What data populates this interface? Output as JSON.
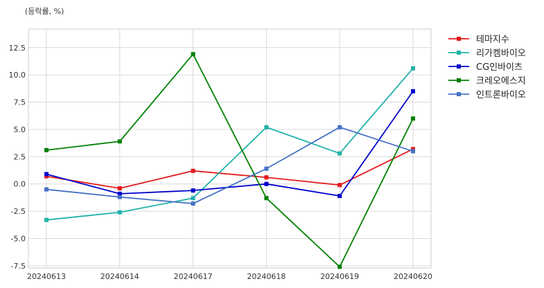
{
  "chart_data": {
    "type": "line",
    "title": "",
    "unit_label": "(등락률, %)",
    "xlabel": "",
    "ylabel": "",
    "categories": [
      "20240613",
      "20240614",
      "20240617",
      "20240618",
      "20240619",
      "20240620"
    ],
    "ylim": [
      -7.7,
      14.2
    ],
    "yticks": [
      -7.5,
      -5.0,
      -2.5,
      0.0,
      2.5,
      5.0,
      7.5,
      10.0,
      12.5
    ],
    "ytick_labels": [
      "-7.5",
      "-5.0",
      "-2.5",
      "0.0",
      "2.5",
      "5.0",
      "7.5",
      "10.0",
      "12.5"
    ],
    "grid": true,
    "legend_position": "outside-top-right",
    "series": [
      {
        "name": "테마지수",
        "color": "#e41a1c",
        "values": [
          0.7,
          -0.4,
          1.2,
          0.6,
          -0.1,
          3.2
        ]
      },
      {
        "name": "리가켐바이오",
        "color": "#20b2aa",
        "values": [
          -3.3,
          -2.6,
          -1.3,
          5.2,
          2.8,
          10.6
        ]
      },
      {
        "name": "CG인바이츠",
        "color": "#0000cd",
        "values": [
          0.9,
          -0.9,
          -0.6,
          0.0,
          -1.1,
          8.5
        ]
      },
      {
        "name": "크레오에스지",
        "color": "#008000",
        "values": [
          3.1,
          3.9,
          11.9,
          -1.3,
          -7.6,
          6.0
        ]
      },
      {
        "name": "인트론바이오",
        "color": "#4472c4",
        "values": [
          -0.5,
          -1.2,
          -1.8,
          1.4,
          5.2,
          3.0
        ]
      }
    ]
  }
}
